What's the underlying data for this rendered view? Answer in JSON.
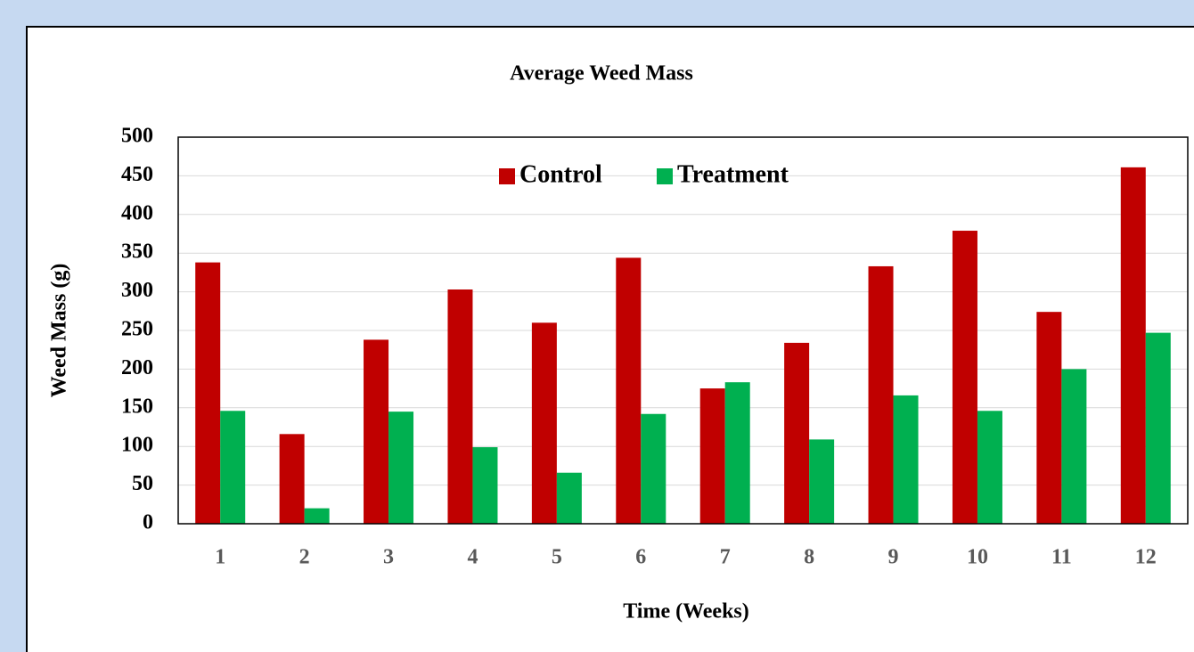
{
  "chart_data": {
    "type": "bar",
    "title": "Average Weed Mass",
    "xlabel": "Time (Weeks)",
    "ylabel": "Weed Mass (g)",
    "categories": [
      "1",
      "2",
      "3",
      "4",
      "5",
      "6",
      "7",
      "8",
      "9",
      "10",
      "11",
      "12"
    ],
    "series": [
      {
        "name": "Control",
        "color": "#c00000",
        "values": [
          338,
          116,
          238,
          303,
          260,
          344,
          175,
          234,
          333,
          379,
          274,
          461
        ]
      },
      {
        "name": "Treatment",
        "color": "#00b050",
        "values": [
          146,
          20,
          145,
          99,
          66,
          142,
          183,
          109,
          166,
          146,
          200,
          247
        ]
      }
    ],
    "ylim": [
      0,
      500
    ],
    "yticks": [
      0,
      50,
      100,
      150,
      200,
      250,
      300,
      350,
      400,
      450,
      500
    ],
    "grid": true,
    "legend": "top"
  }
}
